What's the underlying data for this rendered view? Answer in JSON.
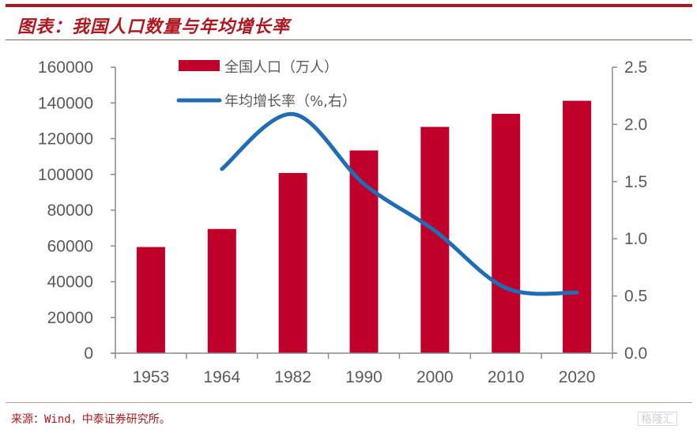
{
  "header": {
    "title": "图表：我国人口数量与年均增长率"
  },
  "footer": {
    "source": "来源：Wind，中泰证券研究所。",
    "watermark": "格隆汇"
  },
  "colors": {
    "bar": "#c0002a",
    "line": "#1f6db5",
    "axis": "#8c8c8c",
    "accent": "#b0161d"
  },
  "chart_data": {
    "type": "bar",
    "title": "图表：我国人口数量与年均增长率",
    "categories": [
      "1953",
      "1964",
      "1982",
      "1990",
      "2000",
      "2010",
      "2020"
    ],
    "series": [
      {
        "name": "全国人口（万人）",
        "type": "bar",
        "axis": "left",
        "values": [
          59400,
          69500,
          100800,
          113400,
          126600,
          133900,
          141200
        ]
      },
      {
        "name": "年均增长率（%,右）",
        "type": "line",
        "axis": "right",
        "smooth": true,
        "values": [
          null,
          1.61,
          2.09,
          1.48,
          1.07,
          0.57,
          0.53
        ]
      }
    ],
    "left_axis": {
      "ylim": [
        0,
        160000
      ],
      "ticks": [
        "0",
        "20000",
        "40000",
        "60000",
        "80000",
        "100000",
        "120000",
        "140000",
        "160000"
      ]
    },
    "right_axis": {
      "ylim": [
        0,
        2.5
      ],
      "ticks": [
        "0.0",
        "0.5",
        "1.0",
        "1.5",
        "2.0",
        "2.5"
      ]
    },
    "xlabel": "",
    "ylabel": "",
    "grid": false,
    "legend": "top-center"
  }
}
